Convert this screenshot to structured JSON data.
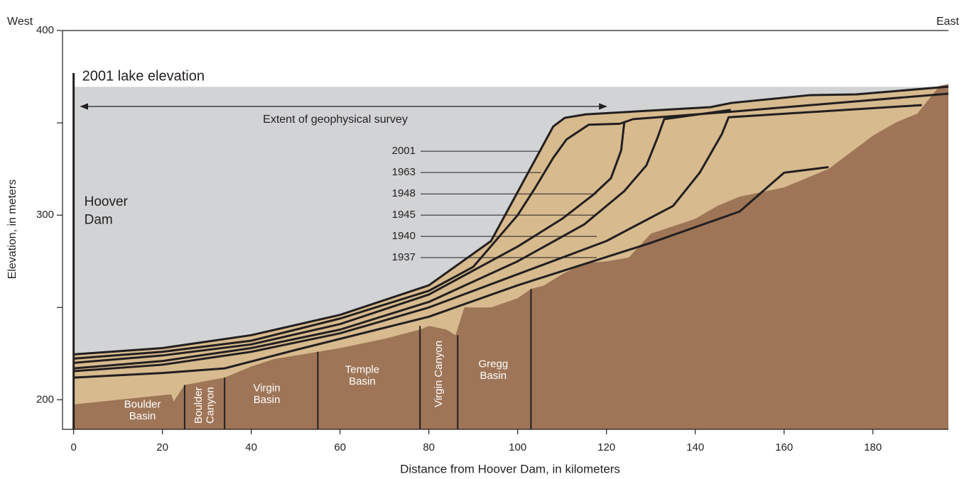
{
  "chart_data": {
    "type": "line",
    "xlabel": "Distance from Hoover Dam, in kilometers",
    "ylabel": "Elevation, in meters",
    "west_label": "West",
    "east_label": "East",
    "xlim": [
      -2.5,
      197
    ],
    "ylim": [
      184,
      400
    ],
    "xticks": [
      0,
      20,
      40,
      60,
      80,
      100,
      120,
      140,
      160,
      180
    ],
    "yticks": [
      200,
      300,
      400
    ],
    "yminorticks": [
      250,
      350
    ],
    "lake_label": "2001 lake elevation",
    "lake_elevation": 369.5,
    "dam_label": "Hoover Dam",
    "dam_top": 377,
    "survey_label": "Extent of geophysical survey",
    "survey_extent": [
      0,
      120
    ],
    "series": [
      {
        "name": "2001",
        "color": "#231f20",
        "x": [
          0,
          20,
          40,
          60,
          80,
          94,
          108,
          110.6,
          115.4,
          143.4,
          148.2,
          165.8,
          176.2,
          197
        ],
        "values": [
          224.6,
          228,
          235,
          246,
          262,
          286,
          348,
          352.7,
          354.6,
          358.5,
          360.8,
          365,
          365.4,
          369.6
        ]
      },
      {
        "name": "1963",
        "color": "#231f20",
        "x": [
          0,
          20,
          40,
          60,
          80,
          90,
          100,
          104,
          108,
          111,
          116,
          123,
          126,
          148,
          197
        ],
        "values": [
          222.3,
          226,
          232,
          244,
          259,
          272,
          300,
          315,
          331,
          341,
          349,
          349.5,
          352,
          356,
          365.8
        ]
      },
      {
        "name": "1948",
        "color": "#231f20",
        "x": [
          0,
          20,
          40,
          60,
          80,
          100,
          110,
          117,
          121,
          123.3,
          124
        ],
        "values": [
          220,
          224,
          230,
          241,
          257,
          283,
          298,
          311,
          320,
          335,
          350
        ]
      },
      {
        "name": "1945",
        "color": "#231f20",
        "x": [
          0,
          20,
          40,
          60,
          80,
          100,
          115,
          124,
          129,
          131.5,
          133,
          148
        ],
        "values": [
          217,
          221,
          228,
          238,
          253,
          275,
          295,
          313,
          327,
          342,
          352,
          357
        ]
      },
      {
        "name": "1940",
        "color": "#231f20",
        "x": [
          0,
          20,
          40,
          60,
          80,
          100,
          120,
          135,
          141,
          146,
          147.5,
          191
        ],
        "values": [
          215.5,
          219,
          226,
          236,
          250,
          268,
          286,
          305,
          323,
          344,
          353,
          359.6
        ]
      },
      {
        "name": "1937",
        "color": "#231f20",
        "x": [
          0,
          20,
          34,
          50,
          80,
          100,
          130,
          150,
          160,
          170
        ],
        "values": [
          212,
          214.5,
          217,
          227,
          245,
          262,
          285,
          302,
          323,
          326
        ]
      }
    ],
    "bedrock": {
      "x": [
        0,
        10,
        22,
        22.5,
        25,
        34,
        40,
        45,
        55,
        60,
        70,
        78,
        80,
        84,
        86,
        88,
        94,
        100,
        103,
        106,
        110,
        115,
        120,
        125,
        130,
        140,
        145,
        150,
        160,
        170,
        180,
        185,
        190,
        195,
        197
      ],
      "values": [
        197.5,
        200,
        203,
        199,
        208,
        212,
        218,
        222,
        226,
        228,
        233,
        238,
        240,
        238,
        235,
        250,
        250,
        255,
        260,
        262,
        268,
        274,
        275,
        277,
        290,
        298,
        305,
        310,
        315,
        325,
        343,
        350,
        355,
        370,
        371
      ]
    },
    "basins": [
      {
        "name": "Boulder Basin"
      },
      {
        "name": "Boulder Canyon"
      },
      {
        "name": "Virgin Basin"
      },
      {
        "name": "Temple Basin"
      },
      {
        "name": "Virgin Canyon"
      },
      {
        "name": "Gregg Basin"
      }
    ],
    "basin_boundaries": {
      "x": [
        25,
        34,
        55,
        78,
        86.5,
        103
      ],
      "top": [
        208,
        212,
        226,
        240,
        235,
        260
      ]
    }
  }
}
